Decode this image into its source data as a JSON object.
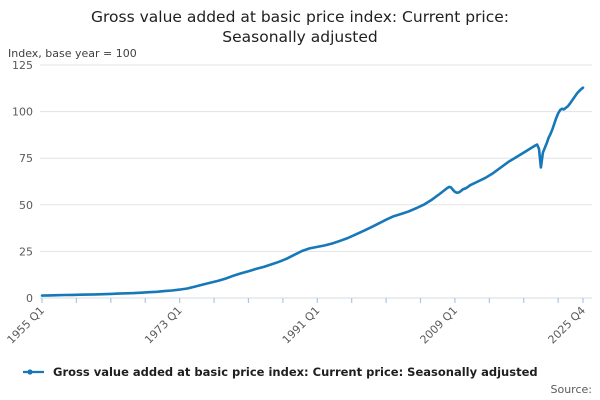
{
  "page": {
    "source_label": "Source:"
  },
  "style": {
    "line_color": "#1678b8",
    "grid_color": "#e3e3e3",
    "axis_color": "#d6dbe0",
    "tick_color": "#aec6e2",
    "muted_text_color": "#5a5a5a",
    "title_color": "#1f1f1f"
  },
  "chart_data": {
    "type": "line",
    "title": "Gross value added at basic price index: Current price: Seasonally adjusted",
    "title_lines": [
      "Gross value added at basic price index: Current price:",
      "Seasonally adjusted"
    ],
    "unit_label": "Index, base year = 100",
    "grid": "horizontal",
    "legend_position": "bottom-left",
    "ylim": [
      0,
      125
    ],
    "y_ticks": [
      0,
      25,
      50,
      75,
      100,
      125
    ],
    "xlim": [
      1955.0,
      2025.75
    ],
    "x_encoding": "decimal years, Q1=.0 Q2=.25 Q3=.5 Q4=.75",
    "x_minor_tick_step_years": 4.5,
    "x_major_ticks": [
      {
        "x": 1955.0,
        "label": "1955 Q1"
      },
      {
        "x": 1973.0,
        "label": "1973 Q1"
      },
      {
        "x": 1991.0,
        "label": "1991 Q1"
      },
      {
        "x": 2009.0,
        "label": "2009 Q1"
      },
      {
        "x": 2025.75,
        "label": "2025 Q4"
      }
    ],
    "series": [
      {
        "name": "Gross value added at basic price index: Current price: Seasonally adjusted",
        "color": "#1678b8",
        "points": [
          [
            1955.0,
            1.3
          ],
          [
            1956.0,
            1.4
          ],
          [
            1957.0,
            1.5
          ],
          [
            1958.0,
            1.6
          ],
          [
            1959.0,
            1.65
          ],
          [
            1960.0,
            1.75
          ],
          [
            1961.0,
            1.85
          ],
          [
            1962.0,
            1.95
          ],
          [
            1963.0,
            2.05
          ],
          [
            1964.0,
            2.2
          ],
          [
            1965.0,
            2.35
          ],
          [
            1966.0,
            2.5
          ],
          [
            1967.0,
            2.65
          ],
          [
            1968.0,
            2.85
          ],
          [
            1969.0,
            3.1
          ],
          [
            1970.0,
            3.35
          ],
          [
            1971.0,
            3.7
          ],
          [
            1972.0,
            4.05
          ],
          [
            1973.0,
            4.5
          ],
          [
            1974.0,
            5.1
          ],
          [
            1975.0,
            6.1
          ],
          [
            1976.0,
            7.2
          ],
          [
            1977.0,
            8.2
          ],
          [
            1978.0,
            9.2
          ],
          [
            1979.0,
            10.4
          ],
          [
            1980.0,
            11.9
          ],
          [
            1981.0,
            13.2
          ],
          [
            1982.0,
            14.4
          ],
          [
            1983.0,
            15.6
          ],
          [
            1984.0,
            16.7
          ],
          [
            1985.0,
            18.0
          ],
          [
            1986.0,
            19.4
          ],
          [
            1987.0,
            21.1
          ],
          [
            1988.0,
            23.2
          ],
          [
            1989.0,
            25.2
          ],
          [
            1990.0,
            26.6
          ],
          [
            1991.0,
            27.4
          ],
          [
            1992.0,
            28.2
          ],
          [
            1993.0,
            29.3
          ],
          [
            1994.0,
            30.7
          ],
          [
            1995.0,
            32.2
          ],
          [
            1996.0,
            34.0
          ],
          [
            1997.0,
            35.9
          ],
          [
            1998.0,
            37.9
          ],
          [
            1999.0,
            39.9
          ],
          [
            2000.0,
            42.0
          ],
          [
            2001.0,
            43.9
          ],
          [
            2002.0,
            45.1
          ],
          [
            2003.0,
            46.5
          ],
          [
            2004.0,
            48.3
          ],
          [
            2005.0,
            50.2
          ],
          [
            2006.0,
            52.8
          ],
          [
            2007.0,
            55.8
          ],
          [
            2008.0,
            59.0
          ],
          [
            2008.25,
            59.6
          ],
          [
            2008.5,
            59.3
          ],
          [
            2008.75,
            58.0
          ],
          [
            2009.0,
            57.0
          ],
          [
            2009.25,
            56.5
          ],
          [
            2009.5,
            56.6
          ],
          [
            2009.75,
            57.3
          ],
          [
            2010.0,
            58.2
          ],
          [
            2010.5,
            59.0
          ],
          [
            2011.0,
            60.5
          ],
          [
            2012.0,
            62.5
          ],
          [
            2013.0,
            64.5
          ],
          [
            2014.0,
            67.0
          ],
          [
            2015.0,
            70.0
          ],
          [
            2016.0,
            73.0
          ],
          [
            2017.0,
            75.5
          ],
          [
            2018.0,
            78.0
          ],
          [
            2019.0,
            80.5
          ],
          [
            2019.5,
            81.8
          ],
          [
            2019.75,
            82.3
          ],
          [
            2020.0,
            80.0
          ],
          [
            2020.25,
            70.0
          ],
          [
            2020.5,
            78.0
          ],
          [
            2020.75,
            80.5
          ],
          [
            2021.0,
            83.0
          ],
          [
            2021.25,
            86.0
          ],
          [
            2021.5,
            88.0
          ],
          [
            2021.75,
            90.5
          ],
          [
            2022.0,
            93.5
          ],
          [
            2022.25,
            96.5
          ],
          [
            2022.5,
            99.0
          ],
          [
            2022.75,
            100.8
          ],
          [
            2023.0,
            101.5
          ],
          [
            2023.25,
            101.2
          ],
          [
            2023.5,
            102.0
          ],
          [
            2023.75,
            102.8
          ],
          [
            2024.0,
            104.0
          ],
          [
            2024.25,
            105.5
          ],
          [
            2024.5,
            107.0
          ],
          [
            2024.75,
            108.5
          ],
          [
            2025.0,
            110.0
          ],
          [
            2025.25,
            111.0
          ],
          [
            2025.5,
            112.0
          ],
          [
            2025.75,
            112.8
          ]
        ]
      }
    ]
  }
}
